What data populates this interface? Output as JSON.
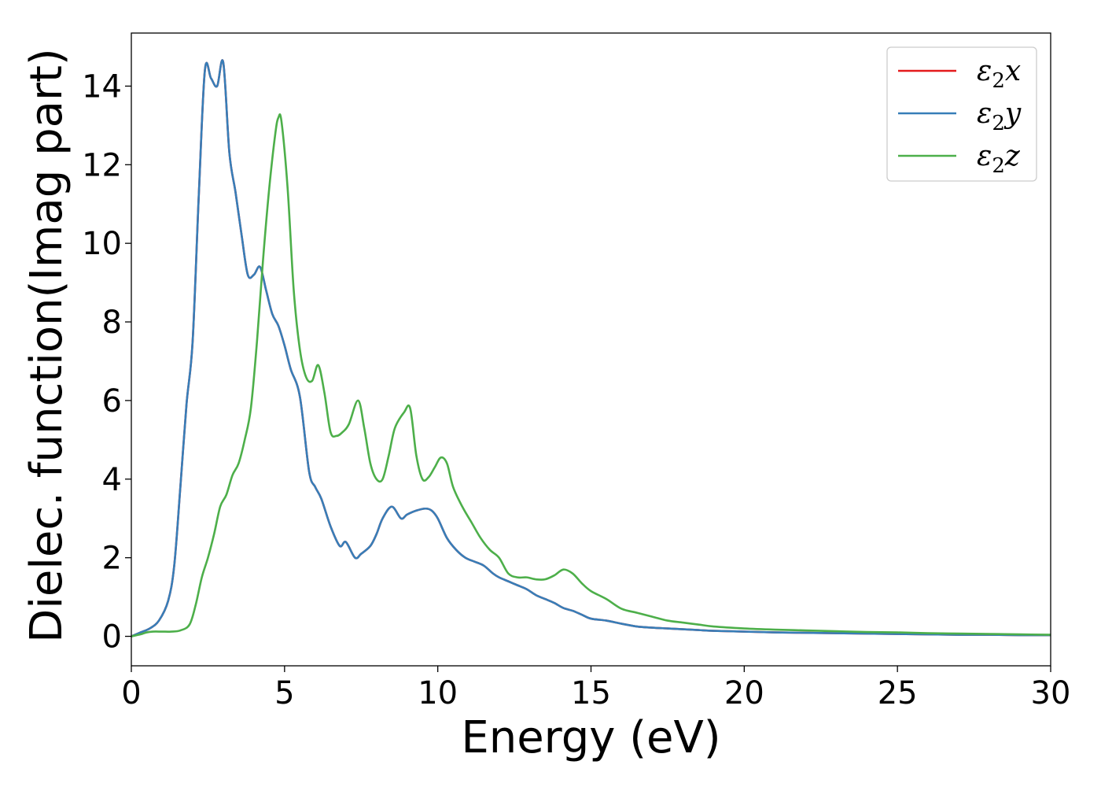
{
  "chart_data": {
    "type": "line",
    "title": "",
    "xlabel": "Energy (eV)",
    "ylabel": "Dielec. function(Imag part)",
    "xlim": [
      0,
      30
    ],
    "ylim": [
      -0.75,
      15.35
    ],
    "xticks": [
      "0",
      "5",
      "10",
      "15",
      "20",
      "25",
      "30"
    ],
    "yticks": [
      "0",
      "2",
      "4",
      "6",
      "8",
      "10",
      "12",
      "14"
    ],
    "grid": false,
    "legend_position": "top-right",
    "series": [
      {
        "name": "ε₂x",
        "legend": {
          "base": "ε",
          "sub": "2",
          "axis": "x"
        },
        "color": "#e41a1c",
        "x": [
          0,
          0.3,
          0.6,
          0.9,
          1.2,
          1.4,
          1.6,
          1.8,
          2.0,
          2.2,
          2.4,
          2.6,
          2.8,
          3.0,
          3.2,
          3.4,
          3.6,
          3.8,
          4.0,
          4.2,
          4.4,
          4.6,
          4.8,
          5.0,
          5.2,
          5.5,
          5.8,
          6.0,
          6.2,
          6.5,
          6.8,
          7.0,
          7.3,
          7.5,
          7.8,
          8.0,
          8.2,
          8.5,
          8.8,
          9.0,
          9.3,
          9.6,
          9.8,
          10.0,
          10.3,
          10.6,
          10.9,
          11.2,
          11.5,
          11.8,
          12.0,
          12.3,
          12.6,
          12.9,
          13.2,
          13.5,
          13.8,
          14.1,
          14.4,
          14.7,
          15.0,
          15.5,
          16.0,
          16.5,
          17.0,
          17.5,
          18.0,
          18.5,
          19.0,
          20.0,
          21.0,
          22.0,
          23.0,
          24.0,
          25.0,
          26.0,
          27.0,
          28.0,
          29.0,
          30.0
        ],
        "values": [
          0,
          0.1,
          0.2,
          0.4,
          0.9,
          1.8,
          3.8,
          5.9,
          7.5,
          11.2,
          14.4,
          14.2,
          14.0,
          14.6,
          12.3,
          11.3,
          10.2,
          9.2,
          9.2,
          9.4,
          8.8,
          8.2,
          7.9,
          7.4,
          6.8,
          6.1,
          4.2,
          3.8,
          3.5,
          2.8,
          2.3,
          2.4,
          2.0,
          2.1,
          2.3,
          2.6,
          3.0,
          3.3,
          3.0,
          3.1,
          3.2,
          3.25,
          3.2,
          3.0,
          2.5,
          2.2,
          2.0,
          1.9,
          1.8,
          1.6,
          1.5,
          1.4,
          1.3,
          1.2,
          1.05,
          0.95,
          0.85,
          0.72,
          0.65,
          0.55,
          0.45,
          0.4,
          0.32,
          0.25,
          0.22,
          0.2,
          0.18,
          0.16,
          0.14,
          0.12,
          0.1,
          0.09,
          0.08,
          0.07,
          0.06,
          0.05,
          0.04,
          0.04,
          0.03,
          0.03
        ]
      },
      {
        "name": "ε₂y",
        "legend": {
          "base": "ε",
          "sub": "2",
          "axis": "y"
        },
        "color": "#377eb8",
        "x": [
          0,
          0.3,
          0.6,
          0.9,
          1.2,
          1.4,
          1.6,
          1.8,
          2.0,
          2.2,
          2.4,
          2.6,
          2.8,
          3.0,
          3.2,
          3.4,
          3.6,
          3.8,
          4.0,
          4.2,
          4.4,
          4.6,
          4.8,
          5.0,
          5.2,
          5.5,
          5.8,
          6.0,
          6.2,
          6.5,
          6.8,
          7.0,
          7.3,
          7.5,
          7.8,
          8.0,
          8.2,
          8.5,
          8.8,
          9.0,
          9.3,
          9.6,
          9.8,
          10.0,
          10.3,
          10.6,
          10.9,
          11.2,
          11.5,
          11.8,
          12.0,
          12.3,
          12.6,
          12.9,
          13.2,
          13.5,
          13.8,
          14.1,
          14.4,
          14.7,
          15.0,
          15.5,
          16.0,
          16.5,
          17.0,
          17.5,
          18.0,
          18.5,
          19.0,
          20.0,
          21.0,
          22.0,
          23.0,
          24.0,
          25.0,
          26.0,
          27.0,
          28.0,
          29.0,
          30.0
        ],
        "values": [
          0,
          0.1,
          0.2,
          0.4,
          0.9,
          1.8,
          3.8,
          5.9,
          7.5,
          11.2,
          14.4,
          14.2,
          14.0,
          14.6,
          12.3,
          11.3,
          10.2,
          9.2,
          9.2,
          9.4,
          8.8,
          8.2,
          7.9,
          7.4,
          6.8,
          6.1,
          4.2,
          3.8,
          3.5,
          2.8,
          2.3,
          2.4,
          2.0,
          2.1,
          2.3,
          2.6,
          3.0,
          3.3,
          3.0,
          3.1,
          3.2,
          3.25,
          3.2,
          3.0,
          2.5,
          2.2,
          2.0,
          1.9,
          1.8,
          1.6,
          1.5,
          1.4,
          1.3,
          1.2,
          1.05,
          0.95,
          0.85,
          0.72,
          0.65,
          0.55,
          0.45,
          0.4,
          0.32,
          0.25,
          0.22,
          0.2,
          0.18,
          0.16,
          0.14,
          0.12,
          0.1,
          0.09,
          0.08,
          0.07,
          0.06,
          0.05,
          0.04,
          0.04,
          0.03,
          0.03
        ]
      },
      {
        "name": "ε₂z",
        "legend": {
          "base": "ε",
          "sub": "2",
          "axis": "z"
        },
        "color": "#4daf4a",
        "x": [
          0,
          0.3,
          0.5,
          0.7,
          1.0,
          1.3,
          1.6,
          1.9,
          2.1,
          2.3,
          2.5,
          2.7,
          2.9,
          3.1,
          3.3,
          3.5,
          3.7,
          3.9,
          4.1,
          4.3,
          4.5,
          4.7,
          4.8,
          4.9,
          5.1,
          5.3,
          5.5,
          5.7,
          5.9,
          6.1,
          6.3,
          6.5,
          6.7,
          6.9,
          7.1,
          7.4,
          7.6,
          7.8,
          8.0,
          8.2,
          8.4,
          8.6,
          8.9,
          9.1,
          9.3,
          9.5,
          9.7,
          9.9,
          10.1,
          10.3,
          10.5,
          10.8,
          11.1,
          11.4,
          11.7,
          12.0,
          12.3,
          12.6,
          12.9,
          13.2,
          13.5,
          13.8,
          14.1,
          14.4,
          14.7,
          15.0,
          15.5,
          16.0,
          16.5,
          17.0,
          17.5,
          18.0,
          18.5,
          19.0,
          20.0,
          21.0,
          22.0,
          23.0,
          24.0,
          25.0,
          26.0,
          27.0,
          28.0,
          29.0,
          30.0
        ],
        "values": [
          0,
          0.05,
          0.1,
          0.12,
          0.12,
          0.12,
          0.15,
          0.3,
          0.8,
          1.5,
          2.0,
          2.6,
          3.3,
          3.6,
          4.1,
          4.4,
          5.0,
          5.8,
          7.5,
          9.6,
          11.4,
          12.8,
          13.2,
          13.1,
          11.4,
          8.8,
          7.3,
          6.6,
          6.5,
          6.9,
          6.2,
          5.2,
          5.1,
          5.2,
          5.4,
          6.0,
          5.3,
          4.4,
          4.0,
          4.0,
          4.6,
          5.3,
          5.7,
          5.8,
          4.6,
          4.0,
          4.05,
          4.3,
          4.55,
          4.4,
          3.8,
          3.3,
          2.9,
          2.5,
          2.2,
          2.0,
          1.6,
          1.5,
          1.5,
          1.45,
          1.45,
          1.55,
          1.7,
          1.6,
          1.35,
          1.15,
          0.95,
          0.7,
          0.6,
          0.5,
          0.4,
          0.35,
          0.3,
          0.25,
          0.2,
          0.17,
          0.15,
          0.13,
          0.11,
          0.1,
          0.08,
          0.07,
          0.06,
          0.05,
          0.04
        ]
      }
    ]
  }
}
